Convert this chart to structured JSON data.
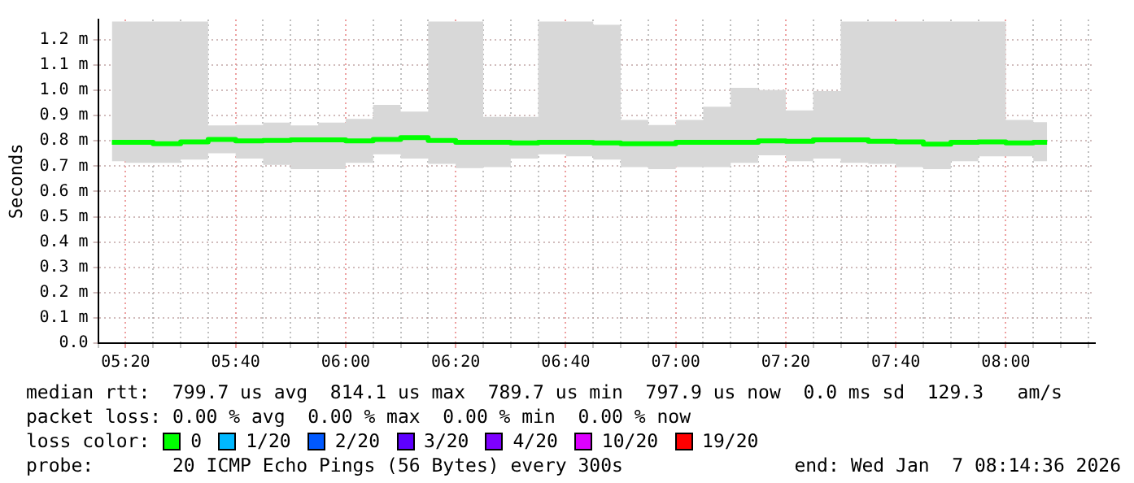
{
  "chart_data": {
    "type": "step",
    "ylabel": "Seconds",
    "legend_title": "loss color:",
    "legend": "bottom",
    "grid": true,
    "xlim": [
      5.25,
      8.27
    ],
    "xticks": [
      {
        "value": 5.25,
        "label": null
      },
      {
        "value": 5.3333,
        "label": "05:20"
      },
      {
        "value": 5.4167,
        "label": null
      },
      {
        "value": 5.5,
        "label": null
      },
      {
        "value": 5.5833,
        "label": null
      },
      {
        "value": 5.6667,
        "label": "05:40"
      },
      {
        "value": 5.75,
        "label": null
      },
      {
        "value": 5.8333,
        "label": null
      },
      {
        "value": 5.9167,
        "label": null
      },
      {
        "value": 6,
        "label": "06:00"
      },
      {
        "value": 6.0833,
        "label": null
      },
      {
        "value": 6.1667,
        "label": null
      },
      {
        "value": 6.25,
        "label": null
      },
      {
        "value": 6.3333,
        "label": "06:20"
      },
      {
        "value": 6.4167,
        "label": null
      },
      {
        "value": 6.5,
        "label": null
      },
      {
        "value": 6.5833,
        "label": null
      },
      {
        "value": 6.6667,
        "label": "06:40"
      },
      {
        "value": 6.75,
        "label": null
      },
      {
        "value": 6.8333,
        "label": null
      },
      {
        "value": 6.9167,
        "label": null
      },
      {
        "value": 7,
        "label": "07:00"
      },
      {
        "value": 7.0833,
        "label": null
      },
      {
        "value": 7.1667,
        "label": null
      },
      {
        "value": 7.25,
        "label": null
      },
      {
        "value": 7.3333,
        "label": "07:20"
      },
      {
        "value": 7.4167,
        "label": null
      },
      {
        "value": 7.5,
        "label": null
      },
      {
        "value": 7.5833,
        "label": null
      },
      {
        "value": 7.6667,
        "label": "07:40"
      },
      {
        "value": 7.75,
        "label": null
      },
      {
        "value": 7.8333,
        "label": null
      },
      {
        "value": 7.9167,
        "label": null
      },
      {
        "value": 8,
        "label": "08:00"
      },
      {
        "value": 8.0833,
        "label": null
      },
      {
        "value": 8.1667,
        "label": null
      },
      {
        "value": 8.25,
        "label": null
      }
    ],
    "ylim": [
      0,
      1.28
    ],
    "yticks": [
      {
        "value": 0,
        "label": "0.0"
      },
      {
        "value": 0.1,
        "label": "0.1 m"
      },
      {
        "value": 0.2,
        "label": "0.2 m"
      },
      {
        "value": 0.3,
        "label": "0.3 m"
      },
      {
        "value": 0.4,
        "label": "0.4 m"
      },
      {
        "value": 0.5,
        "label": "0.5 m"
      },
      {
        "value": 0.6,
        "label": "0.6 m"
      },
      {
        "value": 0.7,
        "label": "0.7 m"
      },
      {
        "value": 0.8,
        "label": "0.8 m"
      },
      {
        "value": 0.9,
        "label": "0.9 m"
      },
      {
        "value": 1.0,
        "label": "1.0 m"
      },
      {
        "value": 1.1,
        "label": "1.1 m"
      },
      {
        "value": 1.2,
        "label": "1.2 m"
      }
    ],
    "x": [
      5.2917,
      5.375,
      5.4583,
      5.5417,
      5.625,
      5.7083,
      5.7917,
      5.875,
      5.9583,
      6.0417,
      6.125,
      6.2083,
      6.2917,
      6.375,
      6.4583,
      6.5417,
      6.625,
      6.7083,
      6.7917,
      6.875,
      6.9583,
      7.0417,
      7.125,
      7.2083,
      7.2917,
      7.375,
      7.4583,
      7.5417,
      7.625,
      7.7083,
      7.7917,
      7.875,
      7.9583,
      8.0417,
      8.125
    ],
    "series": [
      {
        "name": "0",
        "color": "#00ff00",
        "values": [
          0.794,
          0.794,
          0.789,
          0.796,
          0.806,
          0.8,
          0.802,
          0.804,
          0.804,
          0.8,
          0.806,
          0.813,
          0.802,
          0.794,
          0.794,
          0.792,
          0.794,
          0.794,
          0.792,
          0.789,
          0.789,
          0.794,
          0.794,
          0.794,
          0.8,
          0.798,
          0.804,
          0.804,
          0.798,
          0.796,
          0.787,
          0.794,
          0.796,
          0.792,
          0.794
        ],
        "lower": [
          0.72,
          0.713,
          0.713,
          0.726,
          0.751,
          0.73,
          0.705,
          0.688,
          0.688,
          0.713,
          0.747,
          0.73,
          0.709,
          0.692,
          0.696,
          0.73,
          0.747,
          0.739,
          0.726,
          0.696,
          0.688,
          0.696,
          0.696,
          0.713,
          0.743,
          0.72,
          0.73,
          0.713,
          0.709,
          0.696,
          0.688,
          0.72,
          0.739,
          0.739,
          0.72
        ],
        "upper": [
          1.272,
          1.272,
          1.272,
          1.272,
          0.861,
          0.863,
          0.872,
          0.861,
          0.872,
          0.887,
          0.942,
          0.916,
          1.272,
          1.272,
          0.895,
          0.895,
          1.272,
          1.272,
          1.259,
          0.883,
          0.863,
          0.883,
          0.935,
          1.01,
          1.001,
          0.921,
          0.997,
          1.272,
          1.272,
          1.272,
          1.272,
          1.272,
          1.272,
          0.883,
          0.874
        ]
      },
      {
        "name": "1/20",
        "color": "#00b8ff",
        "values": [
          null,
          null,
          null,
          null,
          null,
          null,
          null,
          null,
          null,
          null,
          null,
          null,
          null,
          null,
          null,
          null,
          null,
          null,
          null,
          null,
          null,
          null,
          null,
          null,
          null,
          null,
          null,
          null,
          null,
          null,
          null,
          null,
          null,
          null,
          null
        ]
      },
      {
        "name": "2/20",
        "color": "#0059ff",
        "values": [
          null,
          null,
          null,
          null,
          null,
          null,
          null,
          null,
          null,
          null,
          null,
          null,
          null,
          null,
          null,
          null,
          null,
          null,
          null,
          null,
          null,
          null,
          null,
          null,
          null,
          null,
          null,
          null,
          null,
          null,
          null,
          null,
          null,
          null,
          null
        ]
      },
      {
        "name": "3/20",
        "color": "#5e00ff",
        "values": [
          null,
          null,
          null,
          null,
          null,
          null,
          null,
          null,
          null,
          null,
          null,
          null,
          null,
          null,
          null,
          null,
          null,
          null,
          null,
          null,
          null,
          null,
          null,
          null,
          null,
          null,
          null,
          null,
          null,
          null,
          null,
          null,
          null,
          null,
          null
        ]
      },
      {
        "name": "4/20",
        "color": "#7e00ff",
        "values": [
          null,
          null,
          null,
          null,
          null,
          null,
          null,
          null,
          null,
          null,
          null,
          null,
          null,
          null,
          null,
          null,
          null,
          null,
          null,
          null,
          null,
          null,
          null,
          null,
          null,
          null,
          null,
          null,
          null,
          null,
          null,
          null,
          null,
          null,
          null
        ]
      },
      {
        "name": "10/20",
        "color": "#dd00ff",
        "values": [
          null,
          null,
          null,
          null,
          null,
          null,
          null,
          null,
          null,
          null,
          null,
          null,
          null,
          null,
          null,
          null,
          null,
          null,
          null,
          null,
          null,
          null,
          null,
          null,
          null,
          null,
          null,
          null,
          null,
          null,
          null,
          null,
          null,
          null,
          null
        ]
      },
      {
        "name": "19/20",
        "color": "#ff0000",
        "values": [
          null,
          null,
          null,
          null,
          null,
          null,
          null,
          null,
          null,
          null,
          null,
          null,
          null,
          null,
          null,
          null,
          null,
          null,
          null,
          null,
          null,
          null,
          null,
          null,
          null,
          null,
          null,
          null,
          null,
          null,
          null,
          null,
          null,
          null,
          null
        ]
      }
    ],
    "annotations": [
      "median rtt:  799.7 us avg  814.1 us max  789.7 us min  797.9 us now  0.0 ms sd  129.3   am/s",
      "packet loss: 0.00 % avg  0.00 % max  0.00 % min  0.00 % now",
      "probe:       20 ICMP Echo Pings (56 Bytes) every 300s",
      "end: Wed Jan  7 08:14:36 2026"
    ]
  }
}
